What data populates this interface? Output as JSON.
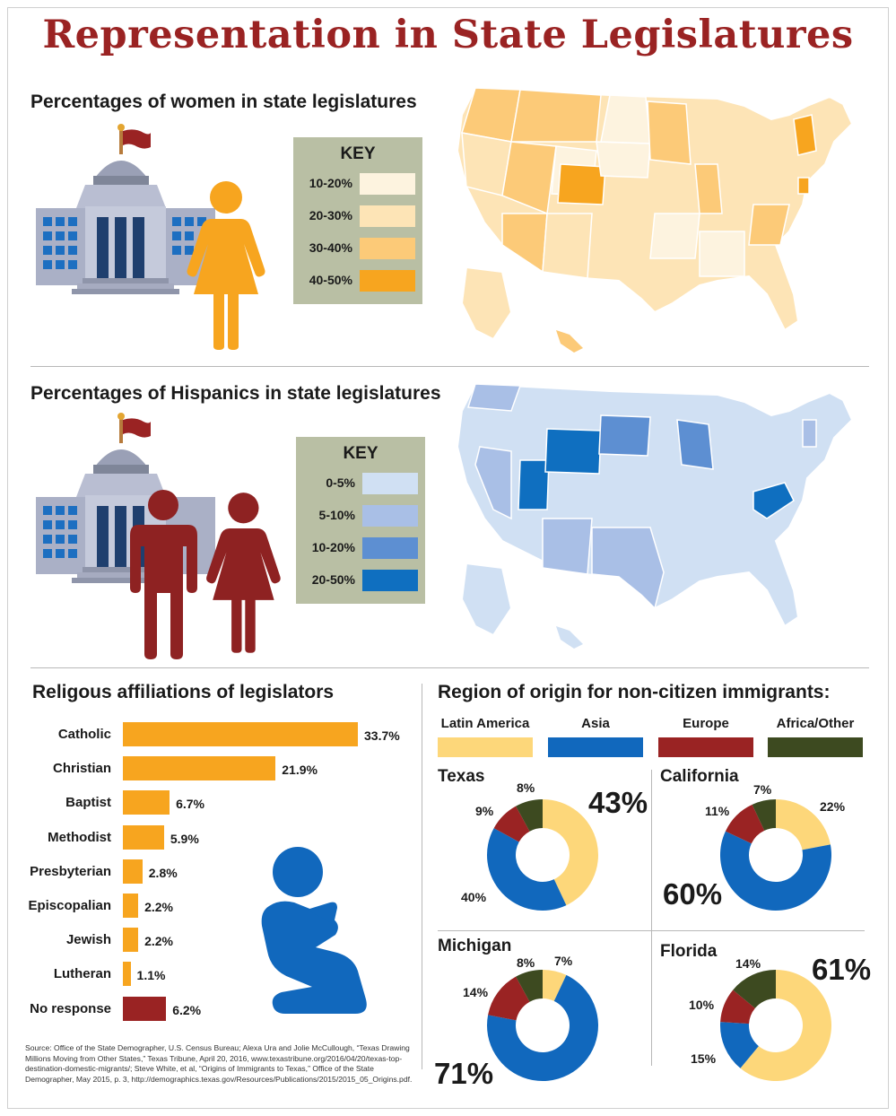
{
  "title": "Representation in State Legislatures",
  "women_section": {
    "title": "Percentages of women in state legislatures",
    "key_title": "KEY",
    "key": [
      {
        "label": "10-20%",
        "color": "#fdf3df"
      },
      {
        "label": "20-30%",
        "color": "#fde4b6"
      },
      {
        "label": "30-40%",
        "color": "#fcca78"
      },
      {
        "label": "40-50%",
        "color": "#f7a51f"
      }
    ]
  },
  "hispanic_section": {
    "title": "Percentages of Hispanics in state legislatures",
    "key_title": "KEY",
    "key": [
      {
        "label": "0-5%",
        "color": "#d0e0f3"
      },
      {
        "label": "5-10%",
        "color": "#a9bfe6"
      },
      {
        "label": "10-20%",
        "color": "#5d8fd2"
      },
      {
        "label": "20-50%",
        "color": "#0f6fc0"
      }
    ]
  },
  "icons": [
    "capitol-building-icon",
    "flag-icon",
    "woman-icon",
    "man-icon",
    "praying-person-icon",
    "us-map"
  ],
  "chart_data": [
    {
      "type": "bar",
      "title": "Religous affiliations of legislators",
      "categories": [
        "Catholic",
        "Christian",
        "Baptist",
        "Methodist",
        "Presbyterian",
        "Episcopalian",
        "Jewish",
        "Lutheran",
        "No response"
      ],
      "values": [
        33.7,
        21.9,
        6.7,
        5.9,
        2.8,
        2.2,
        2.2,
        1.1,
        6.2
      ],
      "value_labels": [
        "33.7%",
        "21.9%",
        "6.7%",
        "5.9%",
        "2.8%",
        "2.2%",
        "2.2%",
        "1.1%",
        "6.2%"
      ],
      "colors": [
        "#f7a51f",
        "#f7a51f",
        "#f7a51f",
        "#f7a51f",
        "#f7a51f",
        "#f7a51f",
        "#f7a51f",
        "#f7a51f",
        "#9a2323"
      ],
      "xlim": [
        0,
        33.7
      ],
      "orientation": "horizontal"
    },
    {
      "type": "pie",
      "title": "Region of origin for non-citizen immigrants:",
      "legend": [
        {
          "name": "Latin America",
          "color": "#fdd77a"
        },
        {
          "name": "Asia",
          "color": "#1168bd"
        },
        {
          "name": "Europe",
          "color": "#9a2323"
        },
        {
          "name": "Africa/Other",
          "color": "#3d4a20"
        }
      ],
      "donut": true,
      "charts": [
        {
          "state": "Texas",
          "values": [
            43,
            40,
            9,
            8
          ],
          "labels": [
            "43%",
            "40%",
            "9%",
            "8%"
          ]
        },
        {
          "state": "California",
          "values": [
            22,
            60,
            11,
            7
          ],
          "labels": [
            "22%",
            "60%",
            "11%",
            "7%"
          ]
        },
        {
          "state": "Michigan",
          "values": [
            7,
            71,
            14,
            8
          ],
          "labels": [
            "7%",
            "71%",
            "14%",
            "8%"
          ]
        },
        {
          "state": "Florida",
          "values": [
            61,
            15,
            10,
            14
          ],
          "labels": [
            "61%",
            "15%",
            "10%",
            "14%"
          ]
        }
      ]
    }
  ],
  "source": "Source: Office of the State Demographer, U.S. Census Bureau; Alexa Ura and Jolie McCullough, “Texas Drawing Millions Moving from Other States,” Texas Tribune, April 20, 2016, www.texastribune.org/2016/04/20/texas-top-destination-domestic-migrants/; Steve White, et al, “Origins of Immigrants to Texas,” Office of the State Demographer, May 2015, p. 3, http://demographics.texas.gov/Resources/Publications/2015/2015_05_Origins.pdf."
}
